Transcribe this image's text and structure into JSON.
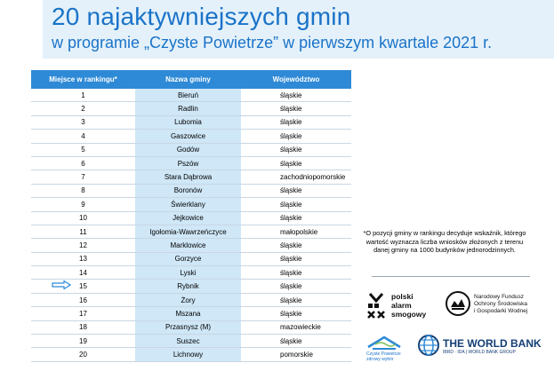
{
  "header": {
    "title": "20 najaktywniejszych gmin",
    "subtitle": "w programie „Czyste Powietrze” w pierwszym kwartale 2021 r."
  },
  "table": {
    "headers": [
      "Miejsce w rankingu*",
      "Nazwa gminy",
      "Województwo"
    ],
    "rows": [
      [
        "1",
        "Bieruń",
        "śląskie"
      ],
      [
        "2",
        "Radlin",
        "śląskie"
      ],
      [
        "3",
        "Lubomia",
        "śląskie"
      ],
      [
        "4",
        "Gaszowice",
        "śląskie"
      ],
      [
        "5",
        "Godów",
        "śląskie"
      ],
      [
        "6",
        "Pszów",
        "śląskie"
      ],
      [
        "7",
        "Stara Dąbrowa",
        "zachodniopomorskie"
      ],
      [
        "8",
        "Boronów",
        "śląskie"
      ],
      [
        "9",
        "Świerklany",
        "śląskie"
      ],
      [
        "10",
        "Jejkowice",
        "śląskie"
      ],
      [
        "11",
        "Igołomia-Wawrzeńczyce",
        "małopolskie"
      ],
      [
        "12",
        "Marklowice",
        "śląskie"
      ],
      [
        "13",
        "Gorzyce",
        "śląskie"
      ],
      [
        "14",
        "Lyski",
        "śląskie"
      ],
      [
        "15",
        "Rybnik",
        "śląskie"
      ],
      [
        "16",
        "Żory",
        "śląskie"
      ],
      [
        "17",
        "Mszana",
        "śląskie"
      ],
      [
        "18",
        "Przasnysz (M)",
        "mazowieckie"
      ],
      [
        "19",
        "Suszec",
        "śląskie"
      ],
      [
        "20",
        "Lichnowy",
        "pomorskie"
      ]
    ],
    "highlighted_rank": "15"
  },
  "footnote": "*O pozycji gminy w rankingu decyduje wskaźnik, którego wartość wyznacza liczba wniosków złożonych z terenu danej gminy na 1000 budynków jednorodzinnych.",
  "logos": {
    "pas": [
      "polski",
      "alarm",
      "smogowy"
    ],
    "nfosigw": [
      "Narodowy Fundusz",
      "Ochrony Środowiska",
      "i Gospodarki Wodnej"
    ],
    "czyste_powietrze": [
      "Czyste Powietrze",
      "zdrowy wybór"
    ],
    "world_bank_title": "THE WORLD BANK",
    "world_bank_sub": "IBRD · IDA | WORLD BANK GROUP"
  },
  "colors": {
    "accent": "#1a73c8",
    "header_bg": "#e4f1fa",
    "table_header": "#2e8ad6",
    "name_column_bg": "#cfe7f7",
    "arrow": "#2e8ad6"
  }
}
